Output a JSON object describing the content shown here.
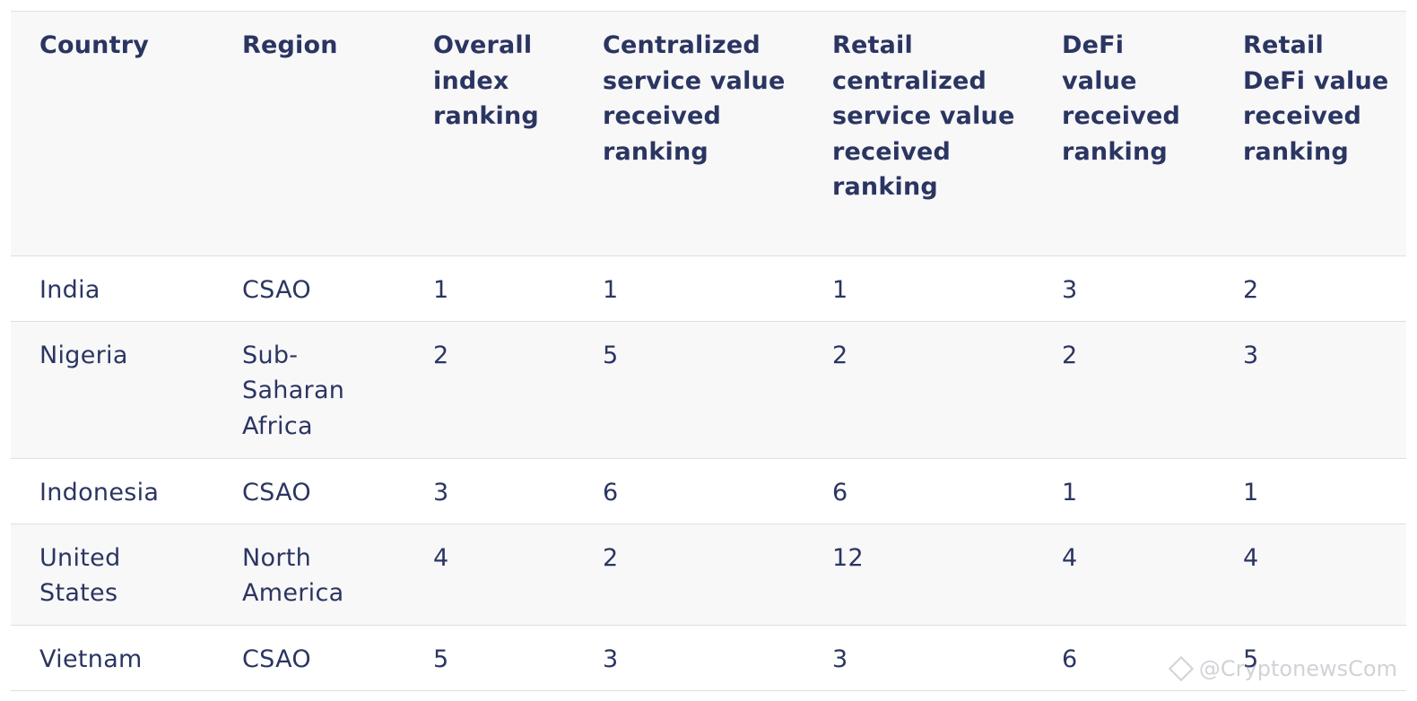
{
  "table": {
    "headers": [
      "Country",
      "Region",
      "Overall index ranking",
      "Centralized service value received ranking",
      "Retail centralized service value received ranking",
      "DeFi value received ranking",
      "Retail DeFi value received ranking"
    ],
    "rows": [
      [
        "India",
        "CSAO",
        "1",
        "1",
        "1",
        "3",
        "2"
      ],
      [
        "Nigeria",
        "Sub-Saharan Africa",
        "2",
        "5",
        "2",
        "2",
        "3"
      ],
      [
        "Indonesia",
        "CSAO",
        "3",
        "6",
        "6",
        "1",
        "1"
      ],
      [
        "United States",
        "North America",
        "4",
        "2",
        "12",
        "4",
        "4"
      ],
      [
        "Vietnam",
        "CSAO",
        "5",
        "3",
        "3",
        "6",
        "5"
      ]
    ]
  },
  "watermark": {
    "text": "@CryptonewsCom",
    "icon": "binance-diamond-icon"
  },
  "colors": {
    "text": "#2b3561",
    "header_bg": "#f8f8f9",
    "row_alt_bg": "#f8f8f9",
    "border": "#dfdfe3"
  }
}
